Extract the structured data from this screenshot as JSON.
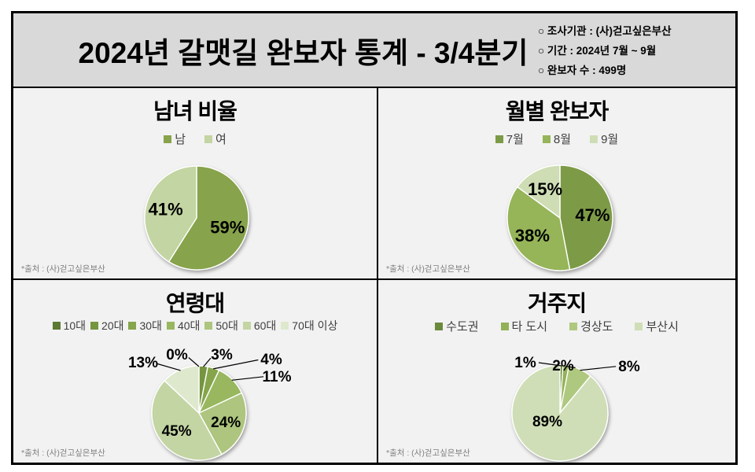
{
  "header": {
    "title": "2024년 갈맷길 완보자 통계 - 3/4분기",
    "info": [
      "○ 조사기관 : (사)걷고싶은부산",
      "○ 기간 : 2024년 7월 ~ 9월",
      "○ 완보자 수 : 499명"
    ]
  },
  "footnote": "*출처 : (사)걷고싶은부산",
  "chart_data": [
    {
      "type": "pie",
      "title": "남녀 비율",
      "legend_position": "top",
      "slices": [
        {
          "label": "남",
          "value": 59,
          "pct": "59%",
          "color": "#87a34c",
          "inside": true
        },
        {
          "label": "여",
          "value": 41,
          "pct": "41%",
          "color": "#c3d5a2",
          "inside": true
        }
      ]
    },
    {
      "type": "pie",
      "title": "월별 완보자",
      "legend_position": "top",
      "slices": [
        {
          "label": "7월",
          "value": 47,
          "pct": "47%",
          "color": "#7d9b46",
          "inside": true
        },
        {
          "label": "8월",
          "value": 38,
          "pct": "38%",
          "color": "#96b459",
          "inside": true
        },
        {
          "label": "9월",
          "value": 15,
          "pct": "15%",
          "color": "#cfddb5",
          "inside": true
        }
      ]
    },
    {
      "type": "pie",
      "title": "연령대",
      "legend_position": "top",
      "slices": [
        {
          "label": "10대",
          "value": 0,
          "pct": "0%",
          "color": "#5c7a33",
          "inside": false
        },
        {
          "label": "20대",
          "value": 3,
          "pct": "3%",
          "color": "#75953f",
          "inside": false
        },
        {
          "label": "30대",
          "value": 4,
          "pct": "4%",
          "color": "#86a54c",
          "inside": false
        },
        {
          "label": "40대",
          "value": 11,
          "pct": "11%",
          "color": "#98b75e",
          "inside": false
        },
        {
          "label": "50대",
          "value": 24,
          "pct": "24%",
          "color": "#adc57e",
          "inside": true
        },
        {
          "label": "60대",
          "value": 45,
          "pct": "45%",
          "color": "#c3d5a3",
          "inside": true
        },
        {
          "label": "70대 이상",
          "value": 13,
          "pct": "13%",
          "color": "#dee8cd",
          "inside": false
        }
      ]
    },
    {
      "type": "pie",
      "title": "거주지",
      "legend_position": "top",
      "slices": [
        {
          "label": "수도권",
          "value": 1,
          "pct": "1%",
          "color": "#6c8a3c",
          "inside": false
        },
        {
          "label": "타 도시",
          "value": 2,
          "pct": "2%",
          "color": "#93b156",
          "inside": false
        },
        {
          "label": "경상도",
          "value": 8,
          "pct": "8%",
          "color": "#afc87f",
          "inside": false
        },
        {
          "label": "부산시",
          "value": 89,
          "pct": "89%",
          "color": "#cfdeb6",
          "inside": true
        }
      ]
    }
  ]
}
